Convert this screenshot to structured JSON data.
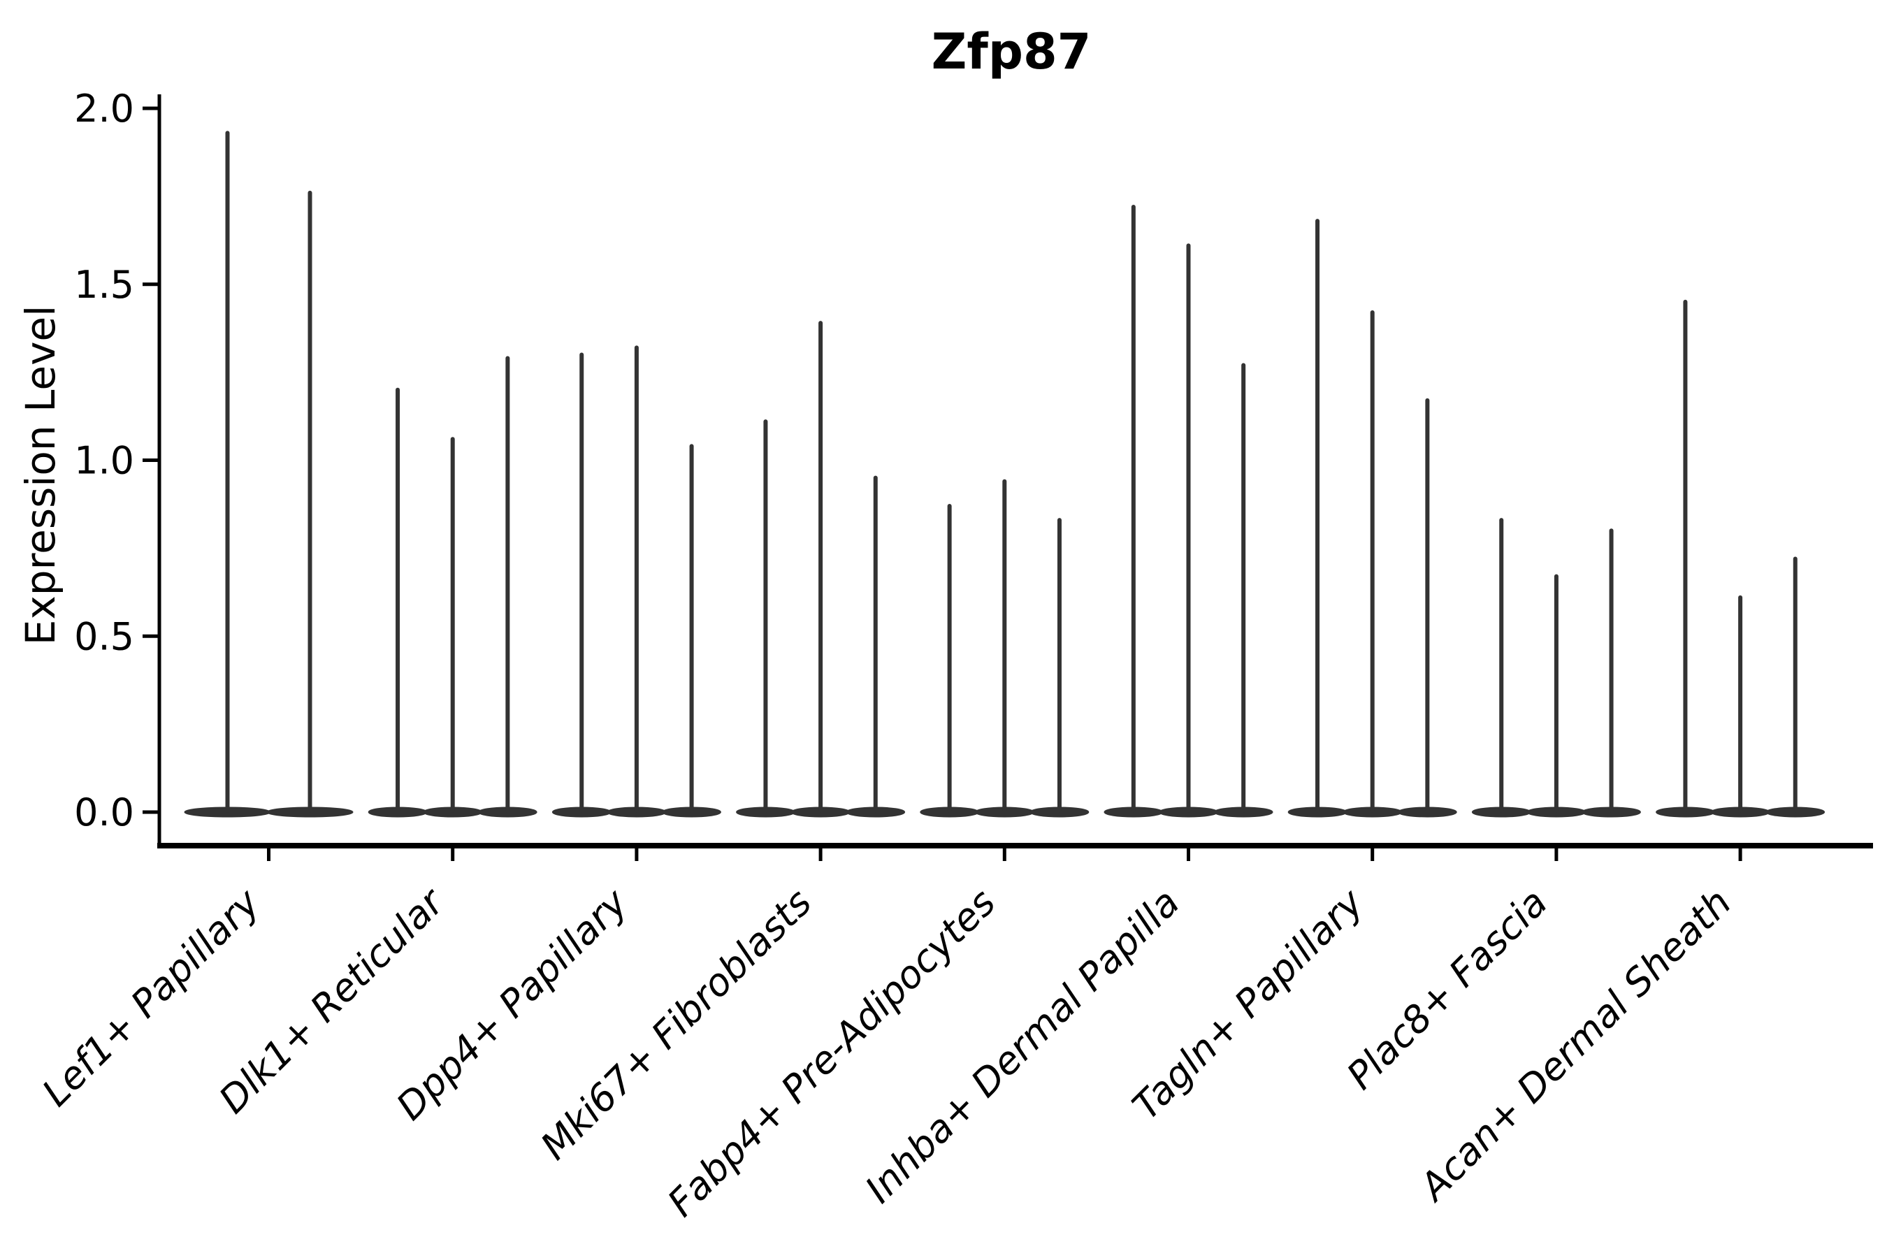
{
  "chart_data": {
    "type": "violin",
    "title": "Zfp87",
    "ylabel": "Expression Level",
    "xlabel": "",
    "ylim": [
      0.0,
      2.0
    ],
    "grid": false,
    "legend": "none",
    "violin_color": "#333333",
    "axis_color": "#000000",
    "yticks": [
      {
        "label": "0.0",
        "value": 0.0
      },
      {
        "label": "0.5",
        "value": 0.5
      },
      {
        "label": "1.0",
        "value": 1.0
      },
      {
        "label": "1.5",
        "value": 1.5
      },
      {
        "label": "2.0",
        "value": 2.0
      }
    ],
    "categories": [
      "Lef1+ Papillary",
      "Dlk1+ Reticular",
      "Dpp4+ Papillary",
      "Mki67+ Fibroblasts",
      "Fabp4+ Pre-Adipocytes",
      "Inhba+ Dermal Papilla",
      "Tagln+ Papillary",
      "Plac8+ Fascia",
      "Acan+ Dermal Sheath"
    ],
    "groups": [
      {
        "label": "Lef1+ Papillary",
        "violin_maxima": [
          1.93,
          1.76
        ]
      },
      {
        "label": "Dlk1+ Reticular",
        "violin_maxima": [
          1.2,
          1.06,
          1.29
        ]
      },
      {
        "label": "Dpp4+ Papillary",
        "violin_maxima": [
          1.3,
          1.32,
          1.04
        ]
      },
      {
        "label": "Mki67+ Fibroblasts",
        "violin_maxima": [
          1.11,
          1.39,
          0.95
        ]
      },
      {
        "label": "Fabp4+ Pre-Adipocytes",
        "violin_maxima": [
          0.87,
          0.94,
          0.83
        ]
      },
      {
        "label": "Inhba+ Dermal Papilla",
        "violin_maxima": [
          1.72,
          1.61,
          1.27
        ]
      },
      {
        "label": "Tagln+ Papillary",
        "violin_maxima": [
          1.68,
          1.42,
          1.17
        ]
      },
      {
        "label": "Plac8+ Fascia",
        "violin_maxima": [
          0.83,
          0.67,
          0.8
        ]
      },
      {
        "label": "Acan+ Dermal Sheath",
        "violin_maxima": [
          1.45,
          0.61,
          0.72
        ]
      }
    ],
    "note_violin_shape": "each violin is flat at 0 with a thin spike up to its maximum expression value"
  }
}
